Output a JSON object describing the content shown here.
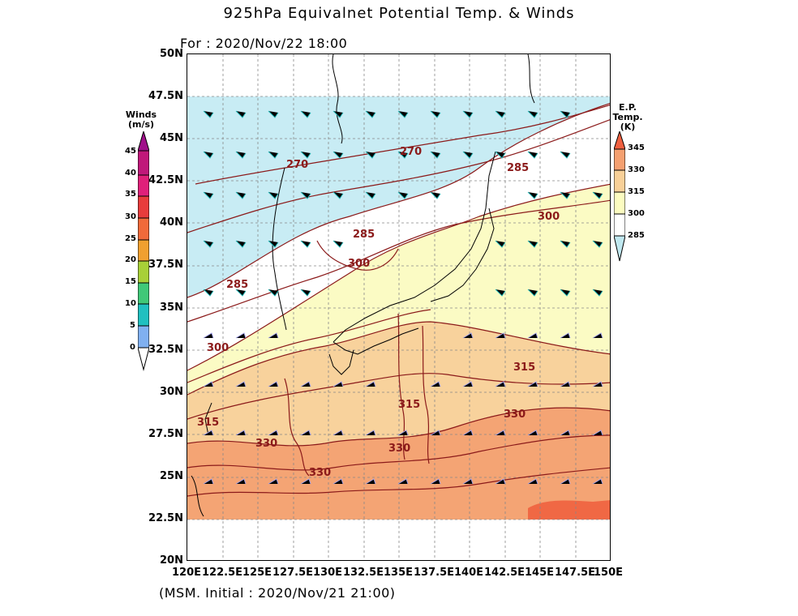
{
  "header": {
    "title": "925hPa Equivalnet Potential Temp. & Winds",
    "valid_time": "For : 2020/Nov/22 18:00"
  },
  "footer": {
    "initial_time": "(MSM. Initial : 2020/Nov/21 21:00)"
  },
  "axes": {
    "lat_labels": [
      "50N",
      "47.5N",
      "45N",
      "42.5N",
      "40N",
      "37.5N",
      "35N",
      "32.5N",
      "30N",
      "27.5N",
      "25N",
      "22.5N",
      "20N"
    ],
    "lon_labels": [
      "120E",
      "122.5E",
      "125E",
      "127.5E",
      "130E",
      "132.5E",
      "135E",
      "137.5E",
      "140E",
      "142.5E",
      "145E",
      "147.5E",
      "150E"
    ],
    "lat_range": [
      20,
      50
    ],
    "lon_range": [
      120,
      150
    ]
  },
  "winds_colorbar": {
    "title_line1": "Winds",
    "title_line2": "(m/s)",
    "ticks": [
      "45",
      "40",
      "35",
      "30",
      "25",
      "20",
      "15",
      "10",
      "5",
      "0"
    ],
    "colors": [
      "#c0187a",
      "#e0207a",
      "#e83c3c",
      "#f06a3a",
      "#f0a030",
      "#a8d038",
      "#40c878",
      "#20c0c0",
      "#80b0f0"
    ]
  },
  "ept_colorbar": {
    "title_line1": "E.P.",
    "title_line2": "Temp.",
    "title_line3": "(K)",
    "ticks": [
      "345",
      "330",
      "315",
      "300",
      "285"
    ],
    "colors": [
      "#f06040",
      "#f4a070",
      "#f8d098",
      "#fcfcc0",
      "#ffffff",
      "#c0e8f0"
    ]
  },
  "contour_labels": [
    {
      "text": "270"
    },
    {
      "text": "270"
    },
    {
      "text": "285"
    },
    {
      "text": "285"
    },
    {
      "text": "285"
    },
    {
      "text": "300"
    },
    {
      "text": "300"
    },
    {
      "text": "300"
    },
    {
      "text": "315"
    },
    {
      "text": "315"
    },
    {
      "text": "315"
    },
    {
      "text": "330"
    },
    {
      "text": "330"
    },
    {
      "text": "330"
    },
    {
      "text": "330"
    }
  ]
}
